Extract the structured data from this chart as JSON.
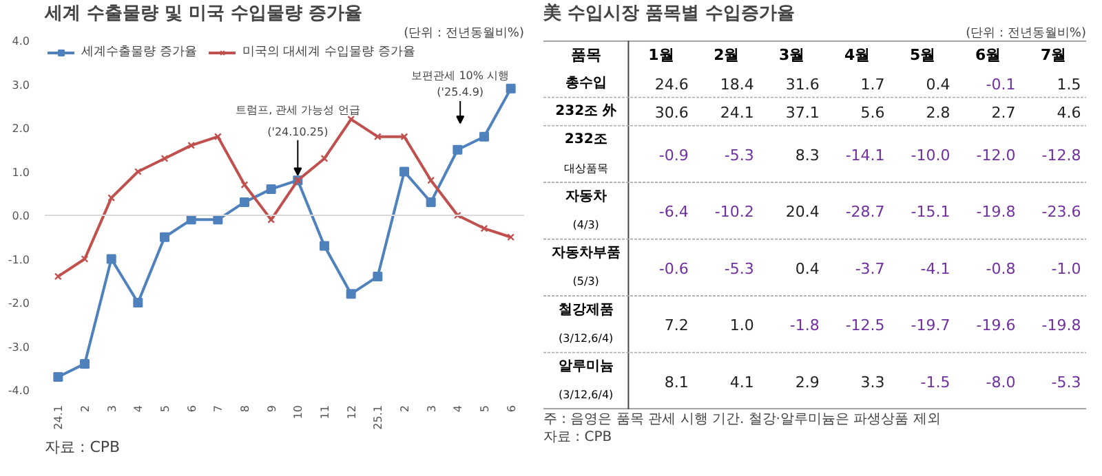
{
  "chart_data": [
    {
      "type": "line",
      "title": "세계 수출물량 및 미국 수입물량 증가율",
      "subtitle": "(단위 : 전년동월비%)",
      "categories": [
        "24.1",
        "2",
        "3",
        "4",
        "5",
        "6",
        "7",
        "8",
        "9",
        "10",
        "11",
        "12",
        "25.1",
        "2",
        "3",
        "4",
        "5",
        "6"
      ],
      "ylim": [
        -4,
        4
      ],
      "yticks": [
        {
          "value": -4,
          "label": "-4.0"
        },
        {
          "value": -3,
          "label": "-3.0"
        },
        {
          "value": -2,
          "label": "-2.0"
        },
        {
          "value": -1,
          "label": "-1.0"
        },
        {
          "value": 0,
          "label": "0.0"
        },
        {
          "value": 1,
          "label": "1.0"
        },
        {
          "value": 2,
          "label": "2.0"
        },
        {
          "value": 3,
          "label": "3.0"
        },
        {
          "value": 4,
          "label": "4.0"
        }
      ],
      "series": [
        {
          "name": "세계수출물량 증가율",
          "color": "#4f81bd",
          "marker": "square",
          "values": [
            -3.7,
            -3.4,
            -1.0,
            -2.0,
            -0.5,
            -0.1,
            -0.1,
            0.3,
            0.6,
            0.8,
            -0.7,
            -1.8,
            -1.4,
            1.0,
            0.3,
            1.5,
            1.8,
            2.9
          ]
        },
        {
          "name": "미국의 대세계 수입물량 증가율",
          "color": "#c0504d",
          "marker": "cross",
          "values": [
            -1.4,
            -1.0,
            0.4,
            1.0,
            1.3,
            1.6,
            1.8,
            0.7,
            -0.1,
            0.8,
            1.3,
            2.2,
            1.8,
            1.8,
            0.8,
            0.0,
            -0.3,
            -0.5
          ]
        }
      ],
      "ref_lines": [
        {
          "axis": "y",
          "value": 0,
          "color": "#d9d9d9"
        }
      ],
      "grid": false,
      "legend": "top",
      "annotations": [
        {
          "text": "트럼프, 관세 가능성 언급\n('24.10.25)",
          "x": "10",
          "y": 0.8
        },
        "보편관세 10% 시행\n('25.4.9)",
        "자료 : CPB"
      ]
    },
    {
      "type": "heatmap",
      "title": "美 수입시장 품목별 수입증가율",
      "subtitle": "(단위 : 전년동월비%)",
      "ylabel": "품목",
      "categories": [
        "1월",
        "2월",
        "3월",
        "4월",
        "5월",
        "6월",
        "7월"
      ],
      "y_categories": [
        "총수입",
        "232조 外",
        "232조\n대상품목",
        "자동차\n(4/3)",
        "자동차부품\n(5/3)",
        "철강제품\n(3/12,6/4)",
        "알루미늄\n(3/12,6/4)"
      ],
      "cells": [
        [
          24.6,
          18.4,
          31.6,
          1.7,
          0.4,
          -0.1,
          1.5
        ],
        [
          30.6,
          24.1,
          37.1,
          5.6,
          2.8,
          2.7,
          4.6
        ],
        [
          -0.9,
          -5.3,
          8.3,
          -14.1,
          -10.0,
          -12.0,
          -12.8
        ],
        [
          -6.4,
          -10.2,
          20.4,
          -28.7,
          -15.1,
          -19.8,
          -23.6
        ],
        [
          -0.6,
          -5.3,
          0.4,
          -3.7,
          -4.1,
          -0.8,
          -1.0
        ],
        [
          7.2,
          1.0,
          -1.8,
          -12.5,
          -19.7,
          -19.6,
          -19.8
        ],
        [
          8.1,
          4.1,
          2.9,
          3.3,
          -1.5,
          -8.0,
          -5.3
        ]
      ],
      "cell_labels": [
        [
          "24.6",
          "18.4",
          "31.6",
          "1.7",
          "0.4",
          "-0.1",
          "1.5"
        ],
        [
          "30.6",
          "24.1",
          "37.1",
          "5.6",
          "2.8",
          "2.7",
          "4.6"
        ],
        [
          "-0.9",
          "-5.3",
          "8.3",
          "-14.1",
          "-10.0",
          "-12.0",
          "-12.8"
        ],
        [
          "-6.4",
          "-10.2",
          "20.4",
          "-28.7",
          "-15.1",
          "-19.8",
          "-23.6"
        ],
        [
          "-0.6",
          "-5.3",
          "0.4",
          "-3.7",
          "-4.1",
          "-0.8",
          "-1.0"
        ],
        [
          "7.2",
          "1.0",
          "-1.8",
          "-12.5",
          "-19.7",
          "-19.6",
          "-19.8"
        ],
        [
          "8.1",
          "4.1",
          "2.9",
          "3.3",
          "-1.5",
          "-8.0",
          "-5.3"
        ]
      ],
      "annotations": [
        "주 : 음영은 품목 관세 시행 기간. 철강·알루미늄은 파생상품 제외",
        "자료 : CPB"
      ]
    }
  ]
}
